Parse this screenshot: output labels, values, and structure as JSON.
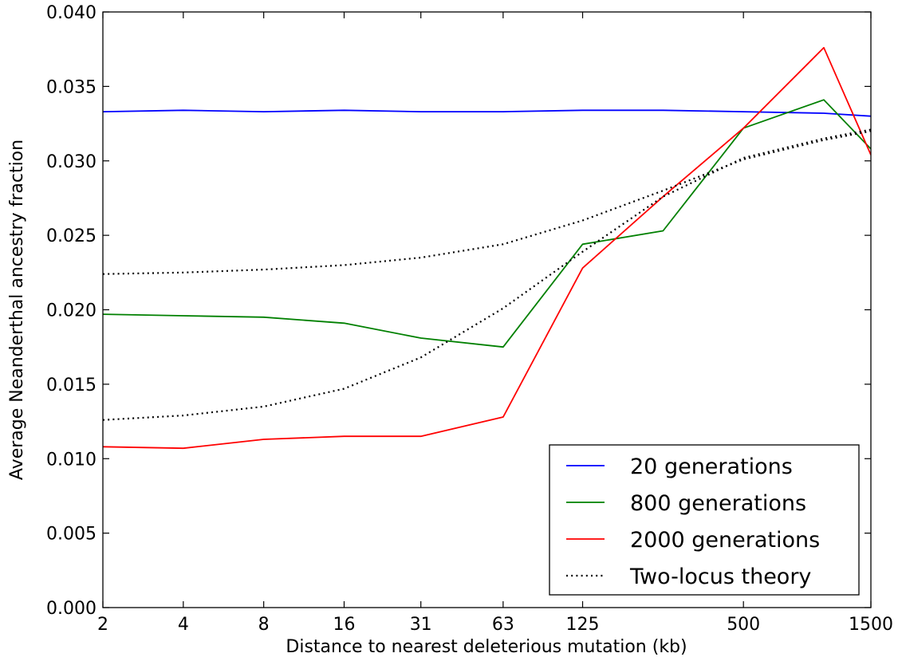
{
  "chart_data": {
    "type": "line",
    "xlabel": "Distance to nearest deleterious mutation (kb)",
    "ylabel": "Average Neanderthal ancestry fraction",
    "x_scale": "log2",
    "xlim": [
      2,
      1500
    ],
    "ylim": [
      0.0,
      0.04
    ],
    "x_ticks": [
      2,
      4,
      8,
      16,
      31,
      63,
      125,
      500,
      1500
    ],
    "x_tick_labels": [
      "2",
      "4",
      "8",
      "16",
      "31",
      "63",
      "125",
      "500",
      "1500"
    ],
    "y_ticks": [
      0.0,
      0.005,
      0.01,
      0.015,
      0.02,
      0.025,
      0.03,
      0.035,
      0.04
    ],
    "y_tick_labels": [
      "0.000",
      "0.005",
      "0.010",
      "0.015",
      "0.020",
      "0.025",
      "0.030",
      "0.035",
      "0.040"
    ],
    "grid": false,
    "legend_position": "bottom-right",
    "series": [
      {
        "name": "20 generations",
        "color": "#0000ff",
        "style": "solid",
        "x": [
          2,
          4,
          8,
          16,
          31,
          63,
          125,
          250,
          500,
          1000,
          1500
        ],
        "y": [
          0.0333,
          0.0334,
          0.0333,
          0.0334,
          0.0333,
          0.0333,
          0.0334,
          0.0334,
          0.0333,
          0.0332,
          0.033
        ]
      },
      {
        "name": "800 generations",
        "color": "#008000",
        "style": "solid",
        "x": [
          2,
          4,
          8,
          16,
          31,
          63,
          125,
          250,
          500,
          1000,
          1500
        ],
        "y": [
          0.0197,
          0.0196,
          0.0195,
          0.0191,
          0.0181,
          0.0175,
          0.0244,
          0.0253,
          0.0322,
          0.0341,
          0.0308
        ]
      },
      {
        "name": "2000 generations",
        "color": "#ff0000",
        "style": "solid",
        "x": [
          2,
          4,
          8,
          16,
          31,
          63,
          125,
          250,
          500,
          1000,
          1500
        ],
        "y": [
          0.0108,
          0.0107,
          0.0113,
          0.0115,
          0.0115,
          0.0128,
          0.0228,
          0.0276,
          0.0322,
          0.0376,
          0.0304
        ]
      },
      {
        "name": "Two-locus theory",
        "color": "#000000",
        "style": "dotted",
        "x": [
          2,
          4,
          8,
          16,
          31,
          63,
          125,
          250,
          500,
          1000,
          1500
        ],
        "y": [
          0.0224,
          0.0225,
          0.0227,
          0.023,
          0.0235,
          0.0244,
          0.026,
          0.028,
          0.0301,
          0.0314,
          0.032
        ]
      },
      {
        "name": "Two-locus theory",
        "color": "#000000",
        "style": "dotted",
        "x": [
          2,
          4,
          8,
          16,
          31,
          63,
          125,
          250,
          500,
          1000,
          1500
        ],
        "y": [
          0.0126,
          0.0129,
          0.0135,
          0.0147,
          0.0168,
          0.0201,
          0.0239,
          0.0276,
          0.0302,
          0.0315,
          0.0321
        ]
      }
    ]
  }
}
